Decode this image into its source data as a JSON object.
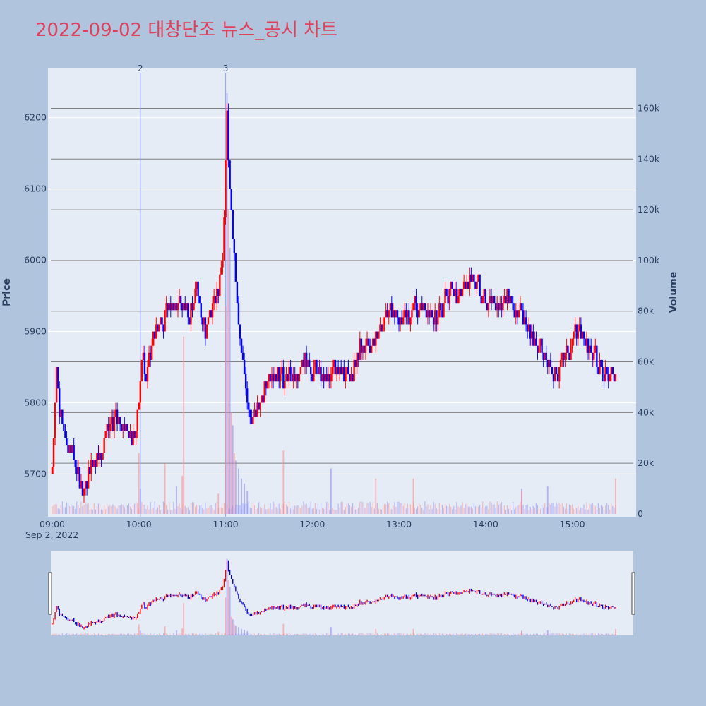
{
  "chart_data": {
    "type": "candlestick",
    "title": "2022-09-02 대창단조 뉴스_공시 차트",
    "ylabel": "Price",
    "y2label": "Volume",
    "date_label": "Sep 2, 2022",
    "x_tick_labels": [
      "09:00",
      "10:00",
      "11:00",
      "12:00",
      "13:00",
      "14:00",
      "15:00"
    ],
    "price_ticks": [
      5700,
      5800,
      5900,
      6000,
      6100,
      6200
    ],
    "volume_tick_labels": [
      "0",
      "20k",
      "40k",
      "60k",
      "80k",
      "100k",
      "120k",
      "140k",
      "160k"
    ],
    "volume_ticks": [
      0,
      20000,
      40000,
      60000,
      80000,
      100000,
      120000,
      140000,
      160000
    ],
    "price_range": [
      5640,
      6270
    ],
    "volume_range": [
      0,
      176000
    ],
    "time_range": [
      "09:00",
      "15:31"
    ],
    "up_color": "#ff0000",
    "down_color": "#0000ff",
    "news_markers": [
      {
        "label": "2",
        "time": "10:01"
      },
      {
        "label": "3",
        "time": "11:00"
      }
    ],
    "price_path": [
      [
        "09:00",
        5700
      ],
      [
        "09:03",
        5860
      ],
      [
        "09:05",
        5790
      ],
      [
        "09:08",
        5760
      ],
      [
        "09:12",
        5740
      ],
      [
        "09:15",
        5720
      ],
      [
        "09:18",
        5690
      ],
      [
        "09:22",
        5680
      ],
      [
        "09:26",
        5710
      ],
      [
        "09:30",
        5730
      ],
      [
        "09:35",
        5740
      ],
      [
        "09:40",
        5760
      ],
      [
        "09:43",
        5780
      ],
      [
        "09:47",
        5770
      ],
      [
        "09:50",
        5760
      ],
      [
        "09:55",
        5750
      ],
      [
        "09:58",
        5760
      ],
      [
        "10:00",
        5800
      ],
      [
        "10:02",
        5860
      ],
      [
        "10:05",
        5840
      ],
      [
        "10:08",
        5880
      ],
      [
        "10:12",
        5900
      ],
      [
        "10:16",
        5920
      ],
      [
        "10:20",
        5930
      ],
      [
        "10:25",
        5950
      ],
      [
        "10:30",
        5940
      ],
      [
        "10:35",
        5930
      ],
      [
        "10:40",
        5960
      ],
      [
        "10:43",
        5930
      ],
      [
        "10:46",
        5900
      ],
      [
        "10:50",
        5930
      ],
      [
        "10:55",
        5960
      ],
      [
        "10:58",
        5990
      ],
      [
        "11:00",
        6140
      ],
      [
        "11:01",
        6200
      ],
      [
        "11:03",
        6100
      ],
      [
        "11:05",
        6040
      ],
      [
        "11:07",
        5980
      ],
      [
        "11:09",
        5900
      ],
      [
        "11:12",
        5860
      ],
      [
        "11:15",
        5800
      ],
      [
        "11:18",
        5770
      ],
      [
        "11:22",
        5790
      ],
      [
        "11:25",
        5810
      ],
      [
        "11:30",
        5830
      ],
      [
        "11:35",
        5840
      ],
      [
        "11:40",
        5830
      ],
      [
        "11:45",
        5850
      ],
      [
        "11:50",
        5840
      ],
      [
        "11:55",
        5860
      ],
      [
        "12:00",
        5850
      ],
      [
        "12:05",
        5840
      ],
      [
        "12:10",
        5830
      ],
      [
        "12:15",
        5850
      ],
      [
        "12:20",
        5840
      ],
      [
        "12:25",
        5830
      ],
      [
        "12:30",
        5860
      ],
      [
        "12:33",
        5880
      ],
      [
        "12:38",
        5870
      ],
      [
        "12:42",
        5880
      ],
      [
        "12:45",
        5900
      ],
      [
        "12:50",
        5920
      ],
      [
        "12:55",
        5930
      ],
      [
        "13:00",
        5920
      ],
      [
        "13:05",
        5920
      ],
      [
        "13:10",
        5930
      ],
      [
        "13:15",
        5940
      ],
      [
        "13:20",
        5930
      ],
      [
        "13:25",
        5920
      ],
      [
        "13:30",
        5940
      ],
      [
        "13:35",
        5960
      ],
      [
        "13:40",
        5950
      ],
      [
        "13:45",
        5970
      ],
      [
        "13:50",
        5980
      ],
      [
        "13:55",
        5960
      ],
      [
        "14:00",
        5940
      ],
      [
        "14:05",
        5950
      ],
      [
        "14:10",
        5940
      ],
      [
        "14:15",
        5950
      ],
      [
        "14:20",
        5940
      ],
      [
        "14:25",
        5920
      ],
      [
        "14:30",
        5900
      ],
      [
        "14:35",
        5880
      ],
      [
        "14:40",
        5870
      ],
      [
        "14:45",
        5850
      ],
      [
        "14:50",
        5840
      ],
      [
        "14:55",
        5870
      ],
      [
        "15:00",
        5880
      ],
      [
        "15:05",
        5900
      ],
      [
        "15:10",
        5880
      ],
      [
        "15:15",
        5870
      ],
      [
        "15:20",
        5850
      ],
      [
        "15:25",
        5840
      ],
      [
        "15:28",
        5850
      ],
      [
        "15:30",
        5840
      ]
    ],
    "volume_spikes": [
      {
        "time": "10:00",
        "volume": 24000,
        "color": "red"
      },
      {
        "time": "10:01",
        "volume": 10000,
        "color": "blue"
      },
      {
        "time": "10:18",
        "volume": 20000,
        "color": "red"
      },
      {
        "time": "10:31",
        "volume": 70000,
        "color": "red"
      },
      {
        "time": "10:30",
        "volume": 15000,
        "color": "red"
      },
      {
        "time": "10:26",
        "volume": 11000,
        "color": "blue"
      },
      {
        "time": "10:55",
        "volume": 8000,
        "color": "red"
      },
      {
        "time": "11:00",
        "volume": 82000,
        "color": "red"
      },
      {
        "time": "11:01",
        "volume": 166000,
        "color": "blue"
      },
      {
        "time": "11:02",
        "volume": 120000,
        "color": "red"
      },
      {
        "time": "11:03",
        "volume": 105000,
        "color": "blue"
      },
      {
        "time": "11:04",
        "volume": 40000,
        "color": "red"
      },
      {
        "time": "11:05",
        "volume": 35000,
        "color": "blue"
      },
      {
        "time": "11:06",
        "volume": 24000,
        "color": "red"
      },
      {
        "time": "11:07",
        "volume": 21000,
        "color": "blue"
      },
      {
        "time": "11:09",
        "volume": 18000,
        "color": "blue"
      },
      {
        "time": "11:11",
        "volume": 14000,
        "color": "blue"
      },
      {
        "time": "11:13",
        "volume": 12000,
        "color": "blue"
      },
      {
        "time": "11:15",
        "volume": 9000,
        "color": "blue"
      },
      {
        "time": "11:40",
        "volume": 25000,
        "color": "red"
      },
      {
        "time": "12:13",
        "volume": 18000,
        "color": "blue"
      },
      {
        "time": "12:44",
        "volume": 14000,
        "color": "red"
      },
      {
        "time": "13:10",
        "volume": 14000,
        "color": "red"
      },
      {
        "time": "14:25",
        "volume": 10000,
        "color": "blue"
      },
      {
        "time": "14:25",
        "volume": 9000,
        "color": "red"
      },
      {
        "time": "14:43",
        "volume": 11000,
        "color": "blue"
      },
      {
        "time": "15:30",
        "volume": 14000,
        "color": "red"
      }
    ]
  }
}
